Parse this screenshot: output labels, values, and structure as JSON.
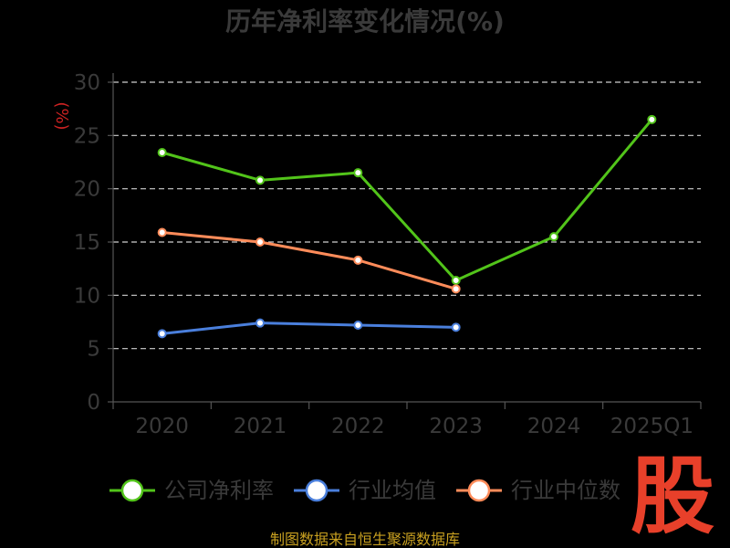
{
  "chart_data": {
    "type": "line",
    "title": "历年净利率变化情况(%)",
    "ylabel": "(%)",
    "categories": [
      "2020",
      "2021",
      "2022",
      "2023",
      "2024",
      "2025Q1"
    ],
    "yticks": [
      "0",
      "5",
      "10",
      "15",
      "20",
      "25",
      "30"
    ],
    "ylim": [
      0,
      30
    ],
    "grid": true,
    "legend_position": "bottom",
    "series": [
      {
        "name": "公司净利率",
        "color": "#52c41a",
        "values": [
          23.4,
          20.8,
          21.5,
          11.4,
          15.5,
          26.5
        ]
      },
      {
        "name": "行业均值",
        "color": "#4a7fdc",
        "values": [
          6.4,
          7.4,
          7.2,
          7.0,
          null,
          null
        ]
      },
      {
        "name": "行业中位数",
        "color": "#ff8c5a",
        "values": [
          15.9,
          15.0,
          13.3,
          10.6,
          null,
          null
        ]
      }
    ]
  },
  "footer": {
    "source": "制图数据来自恒生聚源数据库",
    "logo_char": "股"
  }
}
